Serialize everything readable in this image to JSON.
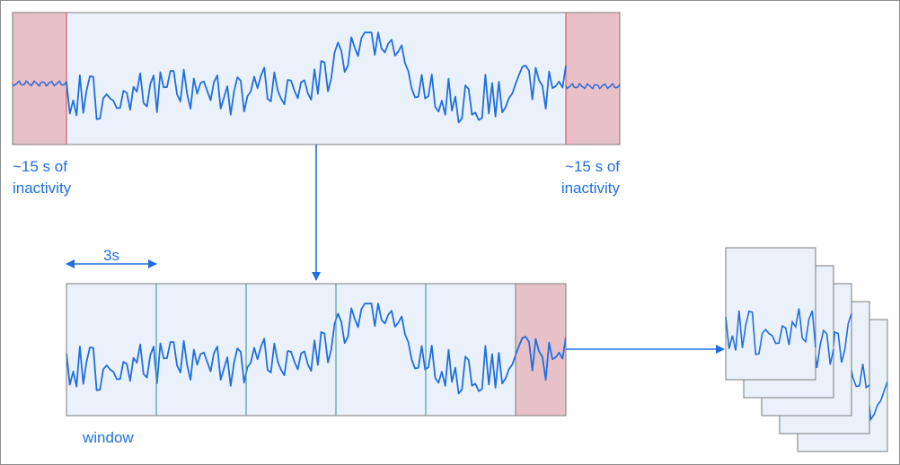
{
  "labels": {
    "inactivity_left_line1": "~15 s of",
    "inactivity_left_line2": "inactivity",
    "inactivity_right_line1": "~15 s of",
    "inactivity_right_line2": "inactivity",
    "window_size": "3s",
    "window": "window"
  },
  "colors": {
    "signal": "#1f6fe0",
    "panel_fill": "#ebf1fa",
    "panel_stroke": "#7a7a7a",
    "inactive_fill": "#e8c1c8",
    "inactive_stroke": "#e0566b",
    "divider": "#49a3a3",
    "arrow": "#1f6fe0",
    "frame": "#8c8c8c"
  },
  "windows": {
    "count": 5,
    "last_partial_inactive": true
  },
  "stack": {
    "count": 5
  }
}
